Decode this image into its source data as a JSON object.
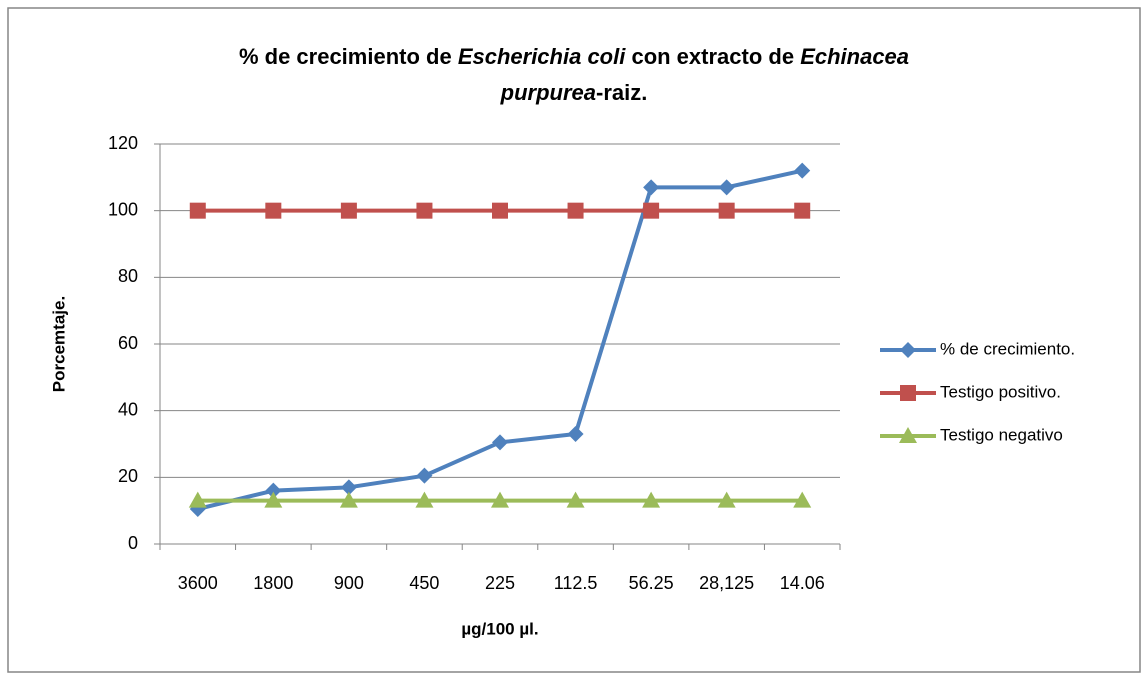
{
  "chart_data": {
    "type": "line",
    "title": [
      [
        {
          "text": "% de crecimiento de ",
          "italic": false
        },
        {
          "text": "Escherichia coli",
          "italic": true
        },
        {
          "text": " con extracto de ",
          "italic": false
        },
        {
          "text": "Echinacea",
          "italic": true
        }
      ],
      [
        {
          "text": "purpurea",
          "italic": true
        },
        {
          "text": "-raiz.",
          "italic": false
        }
      ]
    ],
    "xlabel": "µg/100 µl.",
    "ylabel": "Porcemtaje.",
    "categories": [
      "3600",
      "1800",
      "900",
      "450",
      "225",
      "112.5",
      "56.25",
      "28,125",
      "14.06"
    ],
    "series": [
      {
        "name": "% de crecimiento.",
        "color": "#4f81bd",
        "marker": "diamond",
        "values": [
          10.5,
          16,
          17,
          20.5,
          30.5,
          33,
          107,
          107,
          112
        ]
      },
      {
        "name": "Testigo positivo.",
        "color": "#c0504d",
        "marker": "square",
        "values": [
          100,
          100,
          100,
          100,
          100,
          100,
          100,
          100,
          100
        ]
      },
      {
        "name": "Testigo negativo",
        "color": "#9bbb59",
        "marker": "triangle",
        "values": [
          13,
          13,
          13,
          13,
          13,
          13,
          13,
          13,
          13
        ]
      }
    ],
    "ylim": [
      0,
      120
    ],
    "yticks": [
      0,
      20,
      40,
      60,
      80,
      100,
      120
    ],
    "grid": true,
    "legend": "right"
  }
}
